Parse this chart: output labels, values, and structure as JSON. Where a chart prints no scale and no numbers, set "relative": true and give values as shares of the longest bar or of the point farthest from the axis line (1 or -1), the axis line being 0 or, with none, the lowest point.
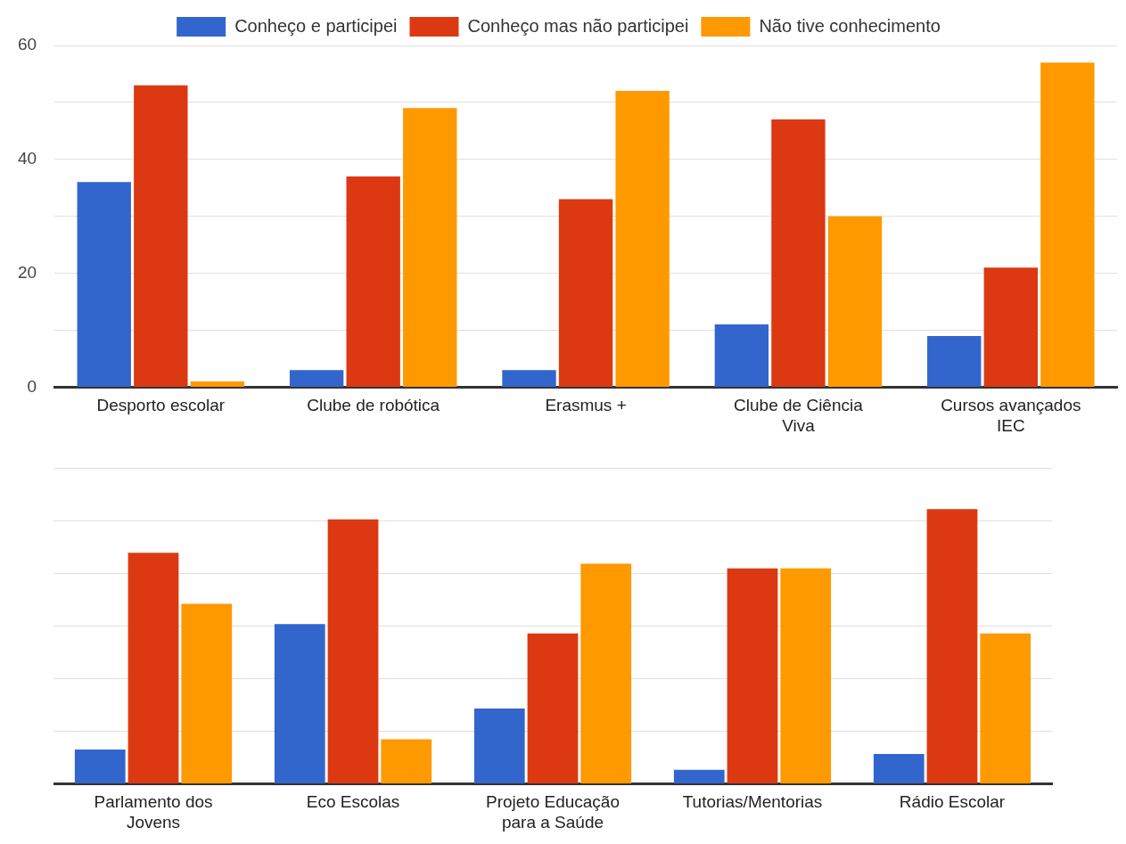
{
  "chart_data": [
    {
      "type": "bar",
      "categories": [
        "Desporto escolar",
        "Clube de robótica",
        "Erasmus +",
        "Clube de Ciência Viva",
        "Cursos avançados IEC"
      ],
      "series": [
        {
          "name": "Conheço e participei",
          "color": "#3366cc",
          "values": [
            36,
            3,
            3,
            11,
            9
          ]
        },
        {
          "name": "Conheço mas não participei",
          "color": "#dc3912",
          "values": [
            53,
            37,
            33,
            47,
            21
          ]
        },
        {
          "name": "Não tive conhecimento",
          "color": "#ff9900",
          "values": [
            1,
            49,
            52,
            30,
            57
          ]
        }
      ],
      "ylim": [
        0,
        60
      ],
      "yticks": [
        0,
        20,
        40,
        60
      ],
      "grid": true,
      "legend": "top"
    },
    {
      "type": "bar",
      "relative": true,
      "categories": [
        "Parlamento dos Jovens",
        "Eco Escolas",
        "Projeto Educação para a Saúde",
        "Tutorias/Mentorias",
        "Rádio Escolar"
      ],
      "series": [
        {
          "color": "#3366cc",
          "values": [
            0.125,
            0.581,
            0.274,
            0.051,
            0.108
          ]
        },
        {
          "color": "#dc3912",
          "values": [
            0.841,
            0.963,
            0.547,
            0.784,
            1
          ]
        },
        {
          "color": "#ff9900",
          "values": [
            0.655,
            0.162,
            0.801,
            0.784,
            0.547
          ]
        }
      ],
      "grid": true
    }
  ]
}
